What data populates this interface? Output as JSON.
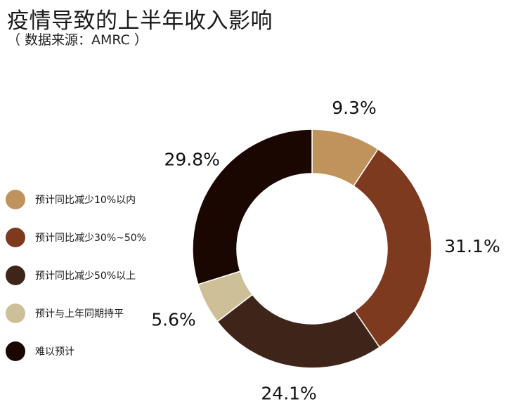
{
  "title": "疫情导致的上半年收入影响",
  "subtitle": "（ 数据来源：AMRC ）",
  "chart_data": {
    "type": "pie",
    "variant": "donut",
    "title": "疫情导致的上半年收入影响",
    "subtitle": "（ 数据来源：AMRC ）",
    "legend_position": "left",
    "slices": [
      {
        "label": "预计同比减少10%以内",
        "value": 9.3,
        "value_label": "9.3%",
        "color": "#C1935C"
      },
      {
        "label": "预计同比减少30%~50%",
        "value": 31.1,
        "value_label": "31.1%",
        "color": "#7E3A1F"
      },
      {
        "label": "预计同比减少50%以上",
        "value": 24.1,
        "value_label": "24.1%",
        "color": "#3F2519"
      },
      {
        "label": "预计与上年同期持平",
        "value": 5.6,
        "value_label": "5.6%",
        "color": "#CDBF97"
      },
      {
        "label": "难以预计",
        "value": 29.8,
        "value_label": "29.8%",
        "color": "#1B0702"
      }
    ]
  }
}
